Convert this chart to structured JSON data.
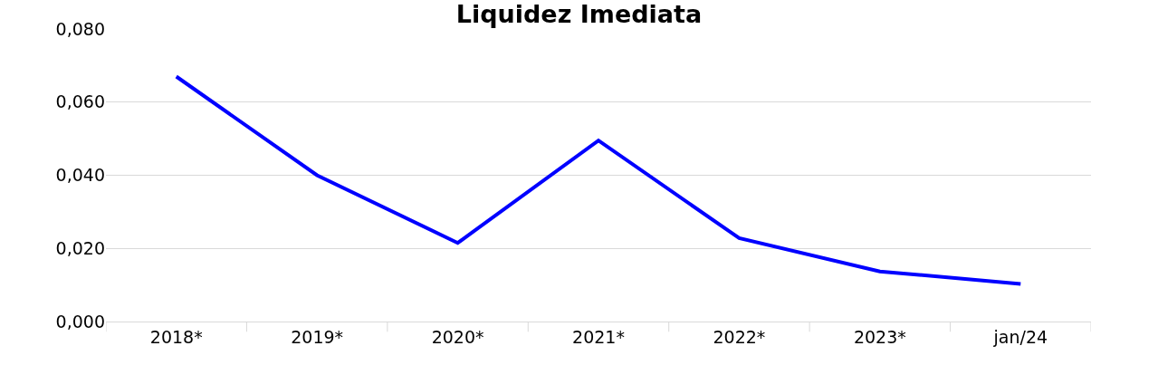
{
  "chart_data": {
    "type": "line",
    "title": "Liquidez Imediata",
    "categories": [
      "2018*",
      "2019*",
      "2020*",
      "2021*",
      "2022*",
      "2023*",
      "jan/24"
    ],
    "series": [
      {
        "color": "#0000ff",
        "values": [
          0.067,
          0.04,
          0.0215,
          0.0495,
          0.0228,
          0.0137,
          0.0103
        ]
      }
    ],
    "ylim": [
      0,
      0.08
    ],
    "yticks": [
      {
        "value": 0,
        "label": "0,000"
      },
      {
        "value": 0.02,
        "label": "0,020"
      },
      {
        "value": 0.04,
        "label": "0,040"
      },
      {
        "value": 0.06,
        "label": "0,060"
      },
      {
        "value": 0.08,
        "label": "0,080"
      }
    ],
    "grid": "y",
    "legend": false,
    "marker": "none",
    "line_style": "solid"
  }
}
